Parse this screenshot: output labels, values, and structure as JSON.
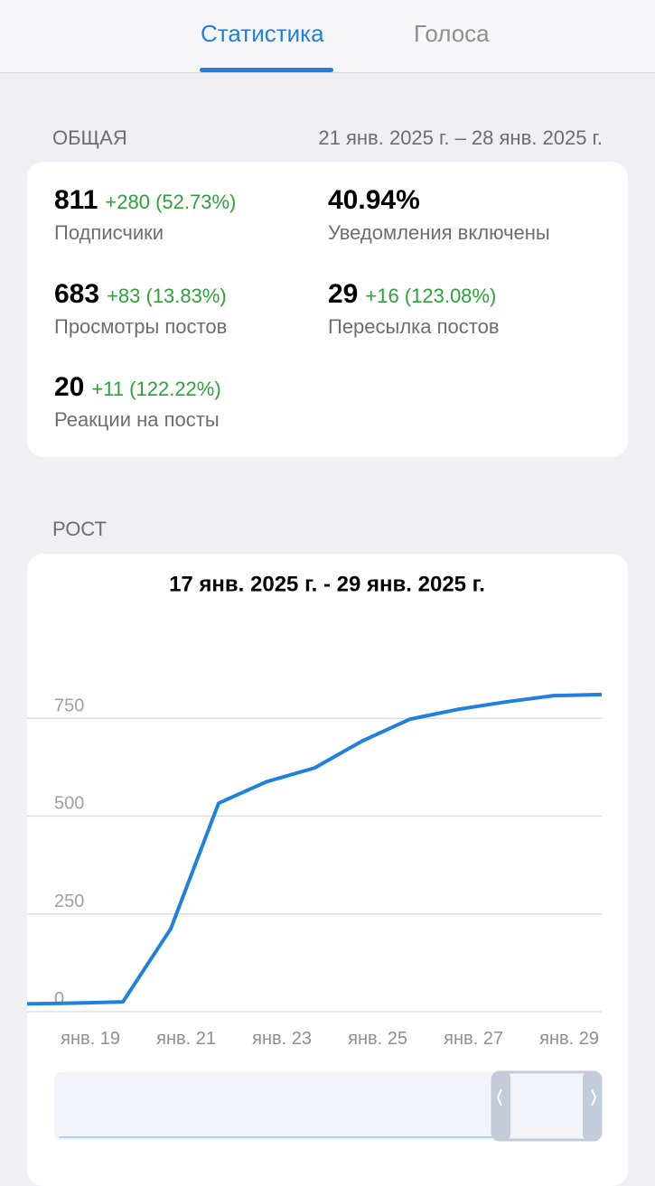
{
  "tabs": [
    "Статистика",
    "Голоса"
  ],
  "overview": {
    "title": "ОБЩАЯ",
    "period": "21 янв. 2025 г. – 28 янв. 2025 г.",
    "stats": [
      {
        "value": "811",
        "change": "+280 (52.73%)",
        "label": "Подписчики"
      },
      {
        "value": "40.94%",
        "label": "Уведомления включены"
      },
      {
        "value": "683",
        "change": "+83 (13.83%)",
        "label": "Просмотры постов"
      },
      {
        "value": "29",
        "change": "+16 (123.08%)",
        "label": "Пересылка постов"
      },
      {
        "value": "20",
        "change": "+11 (122.22%)",
        "label": "Реакции на посты"
      }
    ]
  },
  "growth_title": "РОСТ",
  "chart_data": {
    "type": "line",
    "title": "17 янв. 2025 г. - 29 янв. 2025 г.",
    "categories": [
      null,
      null,
      "янв. 19",
      null,
      "янв. 21",
      null,
      "янв. 23",
      null,
      "янв. 25",
      null,
      "янв. 27",
      null,
      "янв. 29"
    ],
    "values": [
      20,
      22,
      25,
      212,
      533,
      588,
      623,
      692,
      748,
      773,
      792,
      808,
      811
    ],
    "color": "#1f80e0",
    "ylim": [
      0,
      1000
    ],
    "yticks": [
      0,
      250,
      500,
      750
    ],
    "grid": true
  }
}
